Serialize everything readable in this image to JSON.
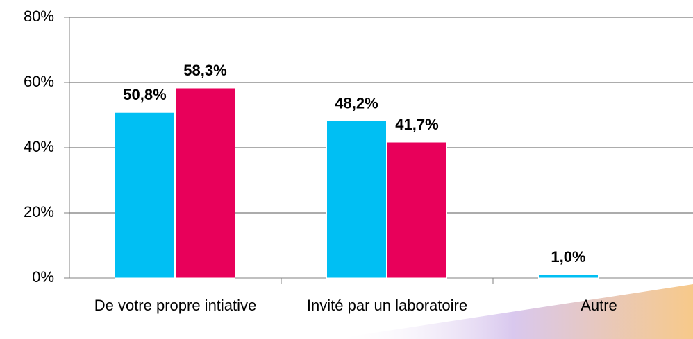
{
  "chart_data": {
    "type": "bar",
    "categories": [
      "De votre propre intiative",
      "Invité par un laboratoire",
      "Autre"
    ],
    "series": [
      {
        "color": "#00bff3",
        "values": [
          50.8,
          48.2,
          1.0
        ],
        "value_labels": [
          "50,8%",
          "48,2%",
          "1,0%"
        ]
      },
      {
        "color": "#e8005a",
        "values": [
          58.3,
          41.7,
          null
        ],
        "value_labels": [
          "58,3%",
          "41,7%",
          null
        ]
      }
    ],
    "ylim": [
      0,
      80
    ],
    "yticks": [
      {
        "value": 0,
        "label": "0%"
      },
      {
        "value": 20,
        "label": "20%"
      },
      {
        "value": 40,
        "label": "40%"
      },
      {
        "value": 60,
        "label": "60%"
      },
      {
        "value": 80,
        "label": "80%"
      }
    ],
    "grid": true
  }
}
